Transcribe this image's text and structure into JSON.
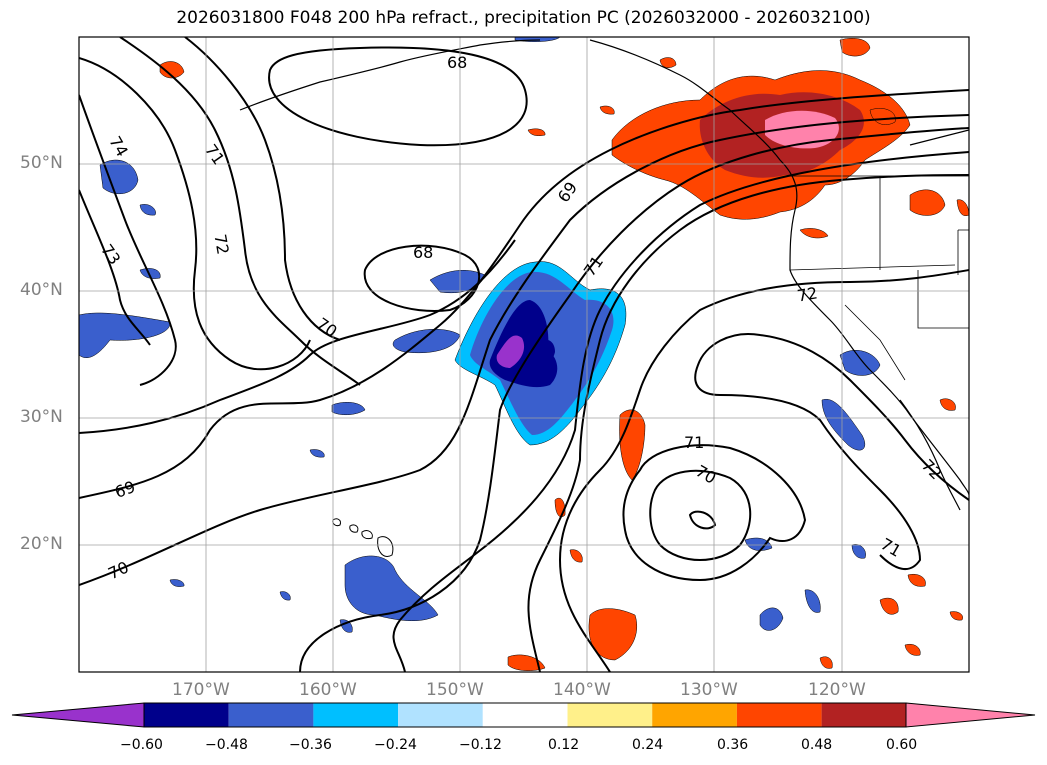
{
  "title": "2026031800 F048 200 hPa refract., precipitation PC (2026032000 - 2026032100)",
  "map": {
    "lon_range": [
      -180,
      -110
    ],
    "lat_range": [
      10,
      60
    ],
    "lat_ticks": [
      {
        "value": 50,
        "label": "50°N"
      },
      {
        "value": 40,
        "label": "40°N"
      },
      {
        "value": 30,
        "label": "30°N"
      },
      {
        "value": 20,
        "label": "20°N"
      }
    ],
    "lon_ticks": [
      {
        "value": -170,
        "label": "170°W"
      },
      {
        "value": -160,
        "label": "160°W"
      },
      {
        "value": -150,
        "label": "150°W"
      },
      {
        "value": -140,
        "label": "140°W"
      },
      {
        "value": -130,
        "label": "130°W"
      },
      {
        "value": -120,
        "label": "120°W"
      }
    ],
    "gridlines": true,
    "contour_labels": [
      "68",
      "68",
      "69",
      "69",
      "70",
      "70",
      "70",
      "71",
      "71",
      "71",
      "71",
      "72",
      "72",
      "72",
      "73",
      "74"
    ]
  },
  "colorbar": {
    "colors": [
      "#9932cc",
      "#00008b",
      "#3a5fcd",
      "#00bfff",
      "#b0e2ff",
      "#ffffff",
      "#fff08a",
      "#ffa500",
      "#ff4500",
      "#b22222",
      "#ff82ab"
    ],
    "ticks": [
      "−0.60",
      "−0.48",
      "−0.36",
      "−0.24",
      "−0.12",
      "0.12",
      "0.24",
      "0.36",
      "0.48",
      "0.60"
    ],
    "extend": "both"
  }
}
